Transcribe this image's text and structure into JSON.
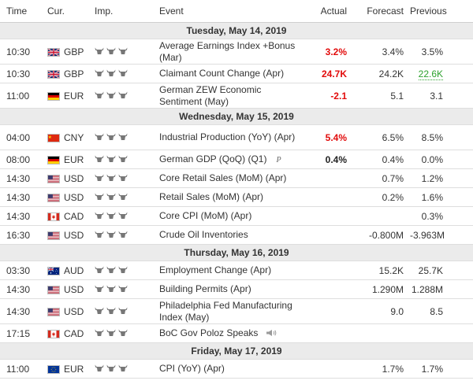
{
  "columns": {
    "time": "Time",
    "currency": "Cur.",
    "importance": "Imp.",
    "event": "Event",
    "actual": "Actual",
    "forecast": "Forecast",
    "previous": "Previous"
  },
  "colors": {
    "actual_worse": "#e20b0b",
    "revised_better": "#2da12d",
    "day_header_bg": "#ebebeb",
    "bull_icon": "#777777"
  },
  "days": [
    {
      "date": "Tuesday, May 14, 2019",
      "events": [
        {
          "time": "10:30",
          "flag": "gb-flag-icon",
          "currency": "GBP",
          "importance": 3,
          "event": "Average Earnings Index +Bonus (Mar)",
          "actual": "3.2%",
          "actual_color": "red",
          "forecast": "3.4%",
          "previous": "3.5%"
        },
        {
          "time": "10:30",
          "flag": "gb-flag-icon",
          "currency": "GBP",
          "importance": 3,
          "event": "Claimant Count Change (Apr)",
          "actual": "24.7K",
          "actual_color": "red",
          "forecast": "24.2K",
          "previous": "22.6K",
          "previous_color": "green"
        },
        {
          "time": "11:00",
          "flag": "de-flag-icon",
          "currency": "EUR",
          "importance": 3,
          "event": "German ZEW Economic Sentiment (May)",
          "actual": "-2.1",
          "actual_color": "red",
          "forecast": "5.1",
          "previous": "3.1"
        }
      ]
    },
    {
      "date": "Wednesday, May 15, 2019",
      "events": [
        {
          "time": "04:00",
          "flag": "cn-flag-icon",
          "currency": "CNY",
          "importance": 3,
          "event": "Industrial Production (YoY) (Apr)",
          "actual": "5.4%",
          "actual_color": "red",
          "forecast": "6.5%",
          "previous": "8.5%"
        },
        {
          "time": "08:00",
          "flag": "de-flag-icon",
          "currency": "EUR",
          "importance": 3,
          "event": "German GDP (QoQ) (Q1)",
          "preliminary": "P",
          "actual": "0.4%",
          "actual_color": "black",
          "forecast": "0.4%",
          "previous": "0.0%"
        },
        {
          "time": "14:30",
          "flag": "us-flag-icon",
          "currency": "USD",
          "importance": 3,
          "event": "Core Retail Sales (MoM) (Apr)",
          "actual": "",
          "forecast": "0.7%",
          "previous": "1.2%"
        },
        {
          "time": "14:30",
          "flag": "us-flag-icon",
          "currency": "USD",
          "importance": 3,
          "event": "Retail Sales (MoM) (Apr)",
          "actual": "",
          "forecast": "0.2%",
          "previous": "1.6%"
        },
        {
          "time": "14:30",
          "flag": "ca-flag-icon",
          "currency": "CAD",
          "importance": 3,
          "event": "Core CPI (MoM) (Apr)",
          "actual": "",
          "forecast": "",
          "previous": "0.3%"
        },
        {
          "time": "16:30",
          "flag": "us-flag-icon",
          "currency": "USD",
          "importance": 3,
          "event": "Crude Oil Inventories",
          "actual": "",
          "forecast": "-0.800M",
          "previous": "-3.963M"
        }
      ]
    },
    {
      "date": "Thursday, May 16, 2019",
      "events": [
        {
          "time": "03:30",
          "flag": "au-flag-icon",
          "currency": "AUD",
          "importance": 3,
          "event": "Employment Change (Apr)",
          "actual": "",
          "forecast": "15.2K",
          "previous": "25.7K"
        },
        {
          "time": "14:30",
          "flag": "us-flag-icon",
          "currency": "USD",
          "importance": 3,
          "event": "Building Permits (Apr)",
          "actual": "",
          "forecast": "1.290M",
          "previous": "1.288M"
        },
        {
          "time": "14:30",
          "flag": "us-flag-icon",
          "currency": "USD",
          "importance": 3,
          "event": "Philadelphia Fed Manufacturing Index (May)",
          "actual": "",
          "forecast": "9.0",
          "previous": "8.5"
        },
        {
          "time": "17:15",
          "flag": "ca-flag-icon",
          "currency": "CAD",
          "importance": 3,
          "event": "BoC Gov Poloz Speaks",
          "speech": true,
          "actual": "",
          "forecast": "",
          "previous": ""
        }
      ]
    },
    {
      "date": "Friday, May 17, 2019",
      "events": [
        {
          "time": "11:00",
          "flag": "eu-flag-icon",
          "currency": "EUR",
          "importance": 3,
          "event": "CPI (YoY) (Apr)",
          "actual": "",
          "forecast": "1.7%",
          "previous": "1.7%"
        }
      ]
    }
  ]
}
